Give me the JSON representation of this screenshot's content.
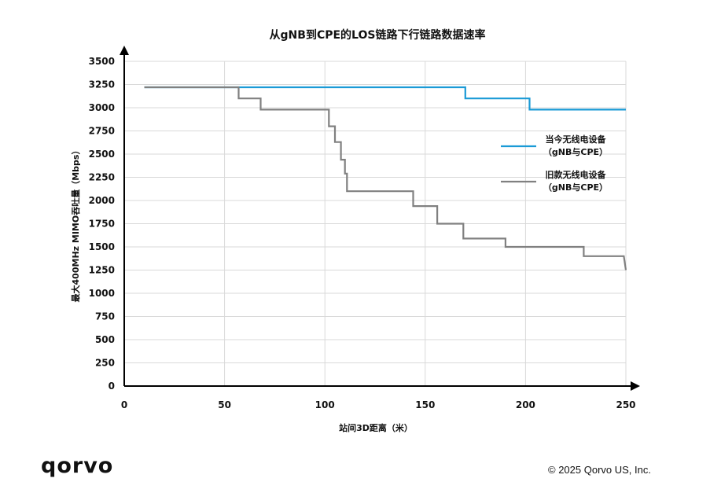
{
  "chart_data": {
    "type": "line",
    "title": "从gNB到CPE的LOS链路下行链路数据速率",
    "xlabel": "站间3D距离（米）",
    "ylabel": "最大400MHz MIMO吞吐量（Mbps）",
    "xlim": [
      0,
      250
    ],
    "ylim": [
      0,
      3500
    ],
    "xticks": [
      0,
      50,
      100,
      150,
      200,
      250
    ],
    "yticks": [
      0,
      250,
      500,
      750,
      1000,
      1250,
      1500,
      1750,
      2000,
      2250,
      2500,
      2750,
      3000,
      3250,
      3500
    ],
    "grid": true,
    "legend_position": "right",
    "series": [
      {
        "name": "当今无线电设备\n（gNB与CPE）",
        "color": "#1a9ad6",
        "x": [
          10,
          170,
          170,
          202,
          202,
          250
        ],
        "y": [
          3220,
          3220,
          3100,
          3100,
          2980,
          2980
        ]
      },
      {
        "name": "旧款无线电设备\n（gNB与CPE）",
        "color": "#808080",
        "x": [
          10,
          57,
          57,
          68,
          68,
          102,
          102,
          105,
          105,
          106,
          106,
          108,
          108,
          110,
          110,
          111,
          111,
          144,
          144,
          156,
          156,
          169,
          169,
          190,
          190,
          229,
          229,
          249,
          250
        ],
        "y": [
          3220,
          3220,
          3100,
          3100,
          2980,
          2980,
          2800,
          2800,
          2630,
          2630,
          2630,
          2630,
          2440,
          2440,
          2290,
          2290,
          2100,
          2100,
          1940,
          1940,
          1750,
          1750,
          1590,
          1590,
          1500,
          1500,
          1400,
          1400,
          1250
        ]
      }
    ]
  },
  "footer": {
    "logo": "qorvo",
    "copyright": "© 2025 Qorvo US, Inc."
  }
}
